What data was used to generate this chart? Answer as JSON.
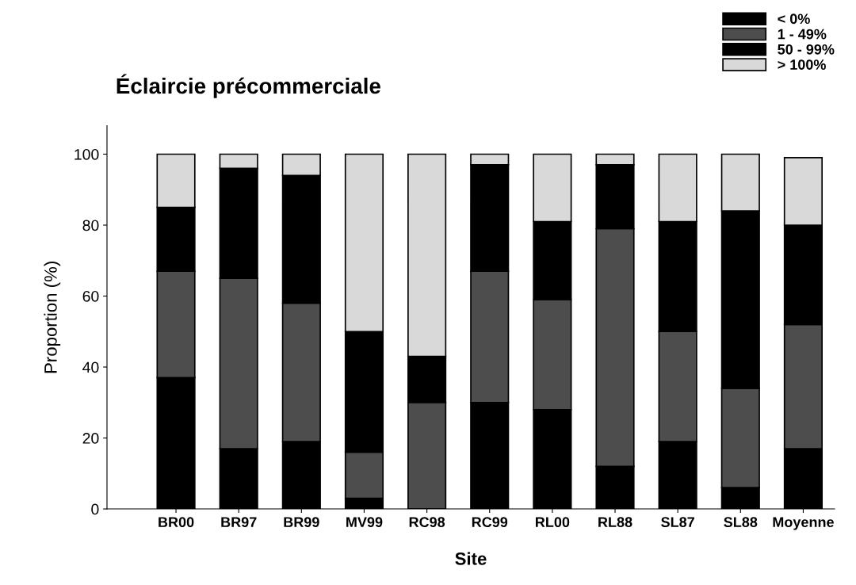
{
  "chart_data": {
    "type": "bar",
    "title": "Éclaircie précommerciale",
    "xlabel": "Site",
    "ylabel": "Proportion (%)",
    "categories": [
      "BR00",
      "BR97",
      "BR99",
      "MV99",
      "RC98",
      "RC99",
      "RL00",
      "RL88",
      "SL87",
      "SL88",
      "Moyenne"
    ],
    "stacked": true,
    "series": [
      {
        "name": "< 0%",
        "color": "#000000",
        "values": [
          37,
          17,
          19,
          3,
          0,
          30,
          28,
          12,
          19,
          6,
          17
        ]
      },
      {
        "name": "1 - 49%",
        "color": "#4d4d4d",
        "values": [
          30,
          48,
          39,
          13,
          30,
          37,
          31,
          67,
          31,
          28,
          35
        ]
      },
      {
        "name": "50 - 99%",
        "color": "#000000",
        "values": [
          18,
          31,
          36,
          34,
          13,
          30,
          22,
          18,
          31,
          50,
          28
        ]
      },
      {
        "name": "> 100%",
        "color": "#d9d9d9",
        "values": [
          15,
          4,
          6,
          50,
          57,
          3,
          19,
          3,
          19,
          16,
          19
        ]
      }
    ],
    "ylim": [
      0,
      108
    ],
    "yticks": [
      0,
      20,
      40,
      60,
      80,
      100
    ],
    "grid": false,
    "legend": "top right"
  }
}
